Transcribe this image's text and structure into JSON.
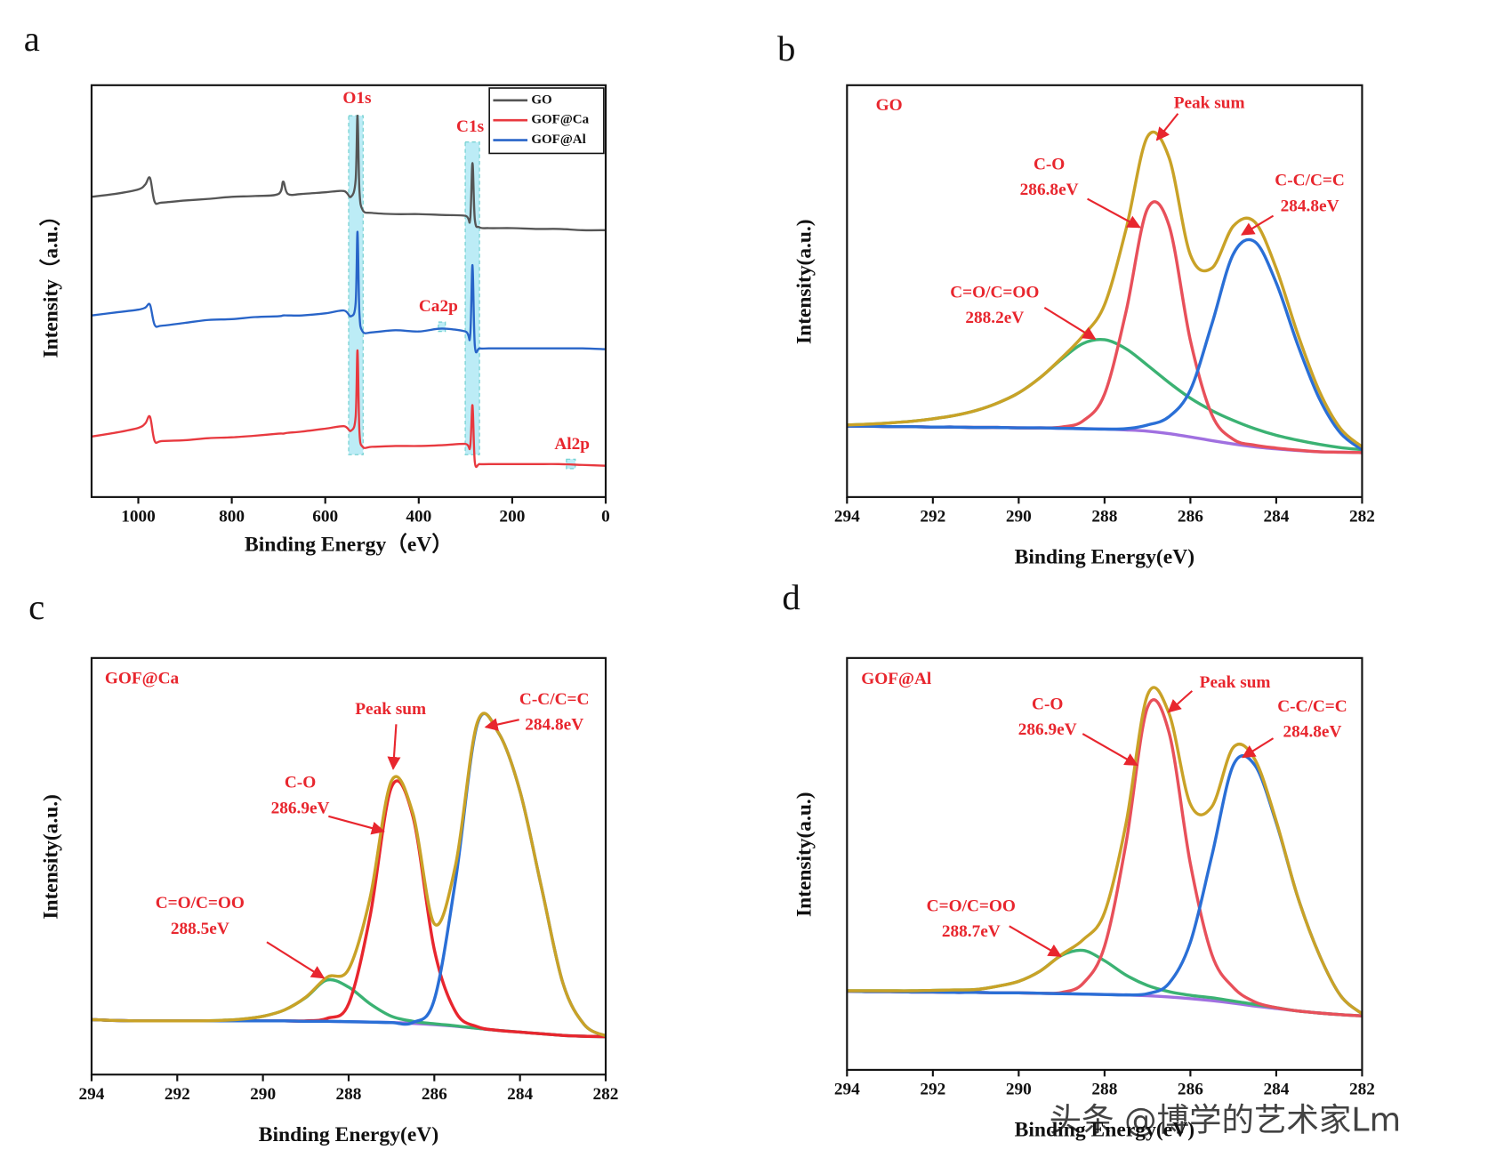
{
  "chart_data": [
    {
      "type": "line",
      "panel_label": "a",
      "xlabel": "Binding Energy（eV）",
      "ylabel": "Intensity（a.u.）",
      "xlim": [
        1100,
        0
      ],
      "ylim": [
        0,
        100
      ],
      "xticks": [
        1000,
        800,
        600,
        400,
        200,
        0
      ],
      "legend": "upper right",
      "x": [
        1100,
        1050,
        1000,
        985,
        975,
        965,
        950,
        900,
        850,
        800,
        750,
        700,
        690,
        680,
        650,
        600,
        560,
        545,
        535,
        531,
        527,
        520,
        500,
        450,
        400,
        350,
        300,
        290,
        285,
        280,
        270,
        250,
        200,
        150,
        100,
        50,
        0
      ],
      "series": [
        {
          "name": "GO",
          "color": "#555555",
          "values": [
            72.9,
            73.6,
            74.7,
            75.9,
            77.5,
            71.7,
            71.5,
            72.0,
            72.4,
            72.9,
            73.1,
            73.6,
            76.6,
            73.6,
            73.6,
            74.0,
            74.3,
            72.9,
            77.0,
            92.6,
            74.7,
            69.7,
            69.0,
            68.7,
            68.7,
            68.5,
            68.3,
            67.4,
            81.1,
            67.4,
            65.5,
            65.3,
            65.3,
            65.1,
            65.1,
            64.8,
            64.8
          ]
        },
        {
          "name": "GOF@Ca",
          "color": "#e8393f",
          "values": [
            14.7,
            15.6,
            16.8,
            17.9,
            19.5,
            13.6,
            13.6,
            13.8,
            14.3,
            14.5,
            14.9,
            15.4,
            15.4,
            15.6,
            15.9,
            16.6,
            17.2,
            16.1,
            19.5,
            35.6,
            16.1,
            12.2,
            12.2,
            12.4,
            12.4,
            12.6,
            12.9,
            12.2,
            22.3,
            8.5,
            8.0,
            8.0,
            8.0,
            8.0,
            8.0,
            7.8,
            7.6
          ]
        },
        {
          "name": "GOF@Al",
          "color": "#2864c8",
          "values": [
            44.1,
            44.8,
            45.5,
            46.0,
            46.7,
            41.8,
            41.6,
            42.3,
            43.0,
            43.2,
            43.7,
            43.9,
            44.1,
            44.1,
            44.1,
            44.6,
            45.3,
            43.9,
            47.1,
            64.4,
            44.8,
            40.2,
            40.0,
            40.5,
            40.2,
            40.9,
            40.2,
            39.1,
            56.3,
            36.8,
            36.1,
            36.1,
            36.1,
            36.1,
            36.1,
            36.1,
            35.9
          ]
        }
      ],
      "highlights": [
        {
          "x": [
            550,
            519
          ],
          "y": [
            10.3,
            92.6
          ]
        },
        {
          "x": [
            300.6,
            270
          ],
          "y": [
            10.3,
            86.2
          ]
        },
        {
          "x": [
            358,
            343
          ],
          "y": [
            40.2,
            42.5
          ]
        },
        {
          "x": [
            84,
            65
          ],
          "y": [
            6.9,
            9.2
          ]
        }
      ],
      "annotations": [
        {
          "lines": [
            "O1s"
          ],
          "x": 532,
          "y": 96.6
        },
        {
          "lines": [
            "C1s"
          ],
          "x": 290,
          "y": 89.7
        },
        {
          "lines": [
            "Ca2p"
          ],
          "x": 358,
          "y": 46
        },
        {
          "lines": [
            "Al2p"
          ],
          "x": 72,
          "y": 12.6
        }
      ]
    },
    {
      "type": "line",
      "panel_label": "b",
      "xlabel": "Binding Energy(eV)",
      "ylabel": "Intensity(a.u.)",
      "xlim": [
        294,
        282
      ],
      "ylim": [
        0,
        100
      ],
      "xticks": [
        294,
        292,
        290,
        288,
        286,
        284,
        282
      ],
      "sample_label": {
        "text": "GO",
        "x": 293.33,
        "y": 94.9
      },
      "x": [
        294,
        293.5,
        293,
        292.5,
        292,
        291.5,
        291,
        290.5,
        290,
        289.5,
        289,
        288.5,
        288,
        287.5,
        287,
        286.5,
        286,
        285.5,
        285,
        284.5,
        284,
        283.5,
        283,
        282.5,
        282
      ],
      "series": [
        {
          "color": "#a070e0",
          "values": [
            17.2,
            17.2,
            17.1,
            17.1,
            17.0,
            17.0,
            16.9,
            16.9,
            16.8,
            16.8,
            16.7,
            16.6,
            16.5,
            16.3,
            16.0,
            15.4,
            14.6,
            13.7,
            12.9,
            12.2,
            11.7,
            11.3,
            11.0,
            10.9,
            10.8
          ]
        },
        {
          "color": "#3bb273",
          "values": [
            17.5,
            17.7,
            18.0,
            18.4,
            19.0,
            19.8,
            21.0,
            22.8,
            25.3,
            29.0,
            33.5,
            37.3,
            38.2,
            36.0,
            32.0,
            27.8,
            24.0,
            21.0,
            18.6,
            16.6,
            15.0,
            13.8,
            12.8,
            12.0,
            11.5
          ]
        },
        {
          "color": "#e8505a",
          "values": [
            17.2,
            17.2,
            17.1,
            17.1,
            17.0,
            17.0,
            16.9,
            16.9,
            16.8,
            16.8,
            17.0,
            18.5,
            25,
            45,
            70,
            66,
            38,
            20,
            14,
            12.6,
            11.9,
            11.4,
            11.0,
            10.9,
            10.8
          ]
        },
        {
          "color": "#2a6fd6",
          "values": [
            17.2,
            17.2,
            17.1,
            17.1,
            17.0,
            17.0,
            16.9,
            16.9,
            16.8,
            16.8,
            16.7,
            16.6,
            16.5,
            16.6,
            17.5,
            19.5,
            26,
            42,
            59,
            62,
            52,
            37,
            24,
            15.5,
            11.5
          ]
        },
        {
          "color": "#c9a227",
          "values": [
            17.5,
            17.7,
            18.0,
            18.4,
            19.0,
            19.8,
            21.0,
            22.8,
            25.3,
            29.0,
            33.8,
            39.2,
            46.7,
            65.0,
            87.5,
            82.5,
            58.8,
            55.6,
            65.8,
            66.8,
            55.5,
            39.6,
            25.8,
            16.6,
            12.2
          ]
        }
      ],
      "annotations": [
        {
          "lines": [
            "Peak sum"
          ],
          "x": 285.56,
          "y": 95.4,
          "xytext": [
            286.29,
            93.1
          ],
          "xy": [
            286.78,
            86.7
          ]
        },
        {
          "lines": [
            "C-O",
            "286.8eV"
          ],
          "x": 289.29,
          "y": 80.5,
          "xytext": [
            288.4,
            72.4
          ],
          "xy": [
            287.18,
            65.5
          ]
        },
        {
          "lines": [
            "C-C/C=C",
            "284.8eV"
          ],
          "x": 283.22,
          "y": 76.6,
          "xytext": [
            284.07,
            68.3
          ],
          "xy": [
            284.8,
            63.7
          ]
        },
        {
          "lines": [
            "C=O/C=OO",
            "288.2eV"
          ],
          "x": 290.56,
          "y": 49.4,
          "xytext": [
            289.4,
            46
          ],
          "xy": [
            288.22,
            38.4
          ]
        }
      ]
    },
    {
      "type": "line",
      "panel_label": "c",
      "xlabel": "Binding Energy(eV)",
      "ylabel": "Intensity(a.u.)",
      "xlim": [
        294,
        282
      ],
      "ylim": [
        0,
        100
      ],
      "xticks": [
        294,
        292,
        290,
        288,
        286,
        284,
        282
      ],
      "sample_label": {
        "text": "GOF@Ca",
        "x": 293.69,
        "y": 94.8
      },
      "x": [
        294,
        293.5,
        293,
        292.5,
        292,
        291.5,
        291,
        290.5,
        290,
        289.5,
        289,
        288.5,
        288,
        287.5,
        287,
        286.5,
        286,
        285.5,
        285,
        284.5,
        284,
        283.5,
        283,
        282.5,
        282
      ],
      "series": [
        {
          "color": "#a070e0",
          "values": [
            13.2,
            13.0,
            12.9,
            12.9,
            12.9,
            12.9,
            12.9,
            12.9,
            12.9,
            12.9,
            12.8,
            12.8,
            12.7,
            12.6,
            12.5,
            12.3,
            12.0,
            11.6,
            11.1,
            10.6,
            10.2,
            9.8,
            9.4,
            9.2,
            9.1
          ]
        },
        {
          "color": "#3bb273",
          "values": [
            13.2,
            13.0,
            12.9,
            12.9,
            12.9,
            12.9,
            13.0,
            13.3,
            14.0,
            15.5,
            18.5,
            22.7,
            21.0,
            17.0,
            14.0,
            12.8,
            12.2,
            11.7,
            11.1,
            10.6,
            10.2,
            9.8,
            9.4,
            9.2,
            9.1
          ]
        },
        {
          "color": "#e8262e",
          "values": [
            13.2,
            13.0,
            12.9,
            12.9,
            12.9,
            12.9,
            12.9,
            12.9,
            12.9,
            12.9,
            12.9,
            13.5,
            17,
            38,
            69,
            62,
            30,
            15,
            11.5,
            10.6,
            10.2,
            9.8,
            9.4,
            9.2,
            9.1
          ]
        },
        {
          "color": "#2a6fd6",
          "values": [
            13.2,
            13.0,
            12.9,
            12.9,
            12.9,
            12.9,
            12.9,
            12.9,
            12.9,
            12.9,
            12.8,
            12.8,
            12.7,
            12.6,
            12.5,
            12.5,
            18,
            47,
            84,
            82,
            68,
            45,
            22,
            12,
            9.3
          ]
        },
        {
          "color": "#c9a227",
          "values": [
            13.2,
            13.0,
            12.9,
            12.9,
            12.9,
            12.9,
            13.0,
            13.3,
            14.0,
            15.5,
            18.6,
            23.4,
            25.3,
            42.4,
            70.5,
            62.7,
            36.2,
            50.5,
            84.4,
            82,
            68,
            45,
            22,
            12,
            9.3
          ]
        }
      ],
      "annotations": [
        {
          "lines": [
            "Peak sum"
          ],
          "x": 287.02,
          "y": 87.5,
          "xytext": [
            286.89,
            84.1
          ],
          "xy": [
            286.96,
            73.4
          ]
        },
        {
          "lines": [
            "C-O",
            "286.9eV"
          ],
          "x": 289.13,
          "y": 69.8,
          "xytext": [
            288.47,
            62
          ],
          "xy": [
            287.18,
            58.4
          ]
        },
        {
          "lines": [
            "C-C/C=C",
            "284.8eV"
          ],
          "x": 283.2,
          "y": 89.8,
          "xytext": [
            284.02,
            85.2
          ],
          "xy": [
            284.8,
            83.4
          ]
        },
        {
          "lines": [
            "C=O/C=OO",
            "288.5eV"
          ],
          "x": 291.47,
          "y": 40.9,
          "xytext": [
            289.91,
            31.8
          ],
          "xy": [
            288.58,
            23.2
          ]
        }
      ]
    },
    {
      "type": "line",
      "panel_label": "d",
      "xlabel": "Binding Energy(eV)",
      "ylabel": "Intensity(a.u.)",
      "xlim": [
        294,
        282
      ],
      "ylim": [
        0,
        100
      ],
      "xticks": [
        294,
        292,
        290,
        288,
        286,
        284,
        282
      ],
      "sample_label": {
        "text": "GOF@Al",
        "x": 293.67,
        "y": 94.7
      },
      "x": [
        294,
        293.5,
        293,
        292.5,
        292,
        291.5,
        291,
        290.5,
        290,
        289.5,
        289,
        288.5,
        288,
        287.5,
        287,
        286.5,
        286,
        285.5,
        285,
        284.5,
        284,
        283.5,
        283,
        282.5,
        282
      ],
      "series": [
        {
          "color": "#a070e0",
          "values": [
            19.1,
            19.0,
            19.0,
            18.9,
            18.9,
            18.8,
            18.8,
            18.7,
            18.7,
            18.6,
            18.5,
            18.4,
            18.3,
            18.2,
            18.0,
            17.7,
            17.3,
            16.8,
            16.2,
            15.5,
            14.9,
            14.3,
            13.8,
            13.4,
            13.1
          ]
        },
        {
          "color": "#3bb273",
          "values": [
            19.2,
            19.2,
            19.2,
            19.2,
            19.3,
            19.4,
            19.5,
            20.3,
            21.5,
            24,
            27.8,
            29,
            26.5,
            23,
            20.5,
            19,
            18.1,
            17.5,
            16.7,
            15.9,
            15.1,
            14.3,
            13.8,
            13.4,
            13.1
          ]
        },
        {
          "color": "#e8505a",
          "values": [
            19.1,
            19.0,
            19.0,
            18.9,
            18.9,
            18.8,
            18.8,
            18.7,
            18.7,
            18.6,
            18.8,
            21,
            30,
            55,
            88,
            82,
            50,
            28,
            20,
            16.5,
            15.1,
            14.3,
            13.8,
            13.4,
            13.1
          ]
        },
        {
          "color": "#2a6fd6",
          "values": [
            19.1,
            19.0,
            19.0,
            18.9,
            18.9,
            18.8,
            18.8,
            18.7,
            18.7,
            18.6,
            18.5,
            18.4,
            18.3,
            18.2,
            18.5,
            21,
            31,
            52,
            74,
            74,
            60,
            42,
            28,
            18,
            13.6
          ]
        },
        {
          "color": "#c9a227",
          "values": [
            19.2,
            19.2,
            19.2,
            19.2,
            19.3,
            19.4,
            19.5,
            20.3,
            21.5,
            24,
            28,
            31.6,
            38.2,
            59.8,
            91,
            86.6,
            64.5,
            63.9,
            78.3,
            75.4,
            60.4,
            42,
            28,
            18,
            13.6
          ]
        }
      ],
      "annotations": [
        {
          "lines": [
            "Peak sum"
          ],
          "x": 284.96,
          "y": 93.8,
          "xytext": [
            285.96,
            92
          ],
          "xy": [
            286.51,
            86.9
          ]
        },
        {
          "lines": [
            "C-O",
            "286.9eV"
          ],
          "x": 289.33,
          "y": 88.5,
          "xytext": [
            288.51,
            81.6
          ],
          "xy": [
            287.24,
            74
          ]
        },
        {
          "lines": [
            "C-C/C=C",
            "284.8eV"
          ],
          "x": 283.16,
          "y": 88,
          "xytext": [
            284.07,
            80.5
          ],
          "xy": [
            284.78,
            75.9
          ]
        },
        {
          "lines": [
            "C=O/C=OO",
            "288.7eV"
          ],
          "x": 291.11,
          "y": 39.5,
          "xytext": [
            290.22,
            34.9
          ],
          "xy": [
            289.02,
            27.6
          ]
        }
      ]
    }
  ],
  "watermark": "头条 @博学的艺术家Lm"
}
